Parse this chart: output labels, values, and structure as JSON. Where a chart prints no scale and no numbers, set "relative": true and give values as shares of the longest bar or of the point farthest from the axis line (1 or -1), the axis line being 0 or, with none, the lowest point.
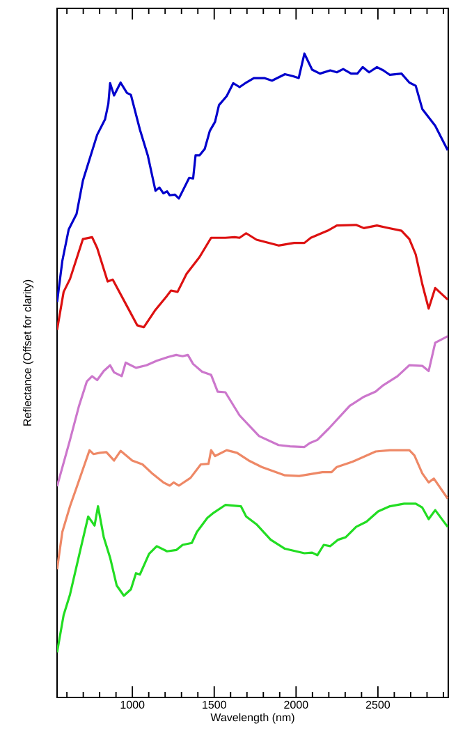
{
  "chart_data": {
    "type": "line",
    "relative": true,
    "xlabel": "Wavelength (nm)",
    "ylabel": "Reflectance (Offset for clarity)",
    "xlim": [
      540,
      2930
    ],
    "xticks": [
      {
        "value": 600,
        "label": null
      },
      {
        "value": 700,
        "label": null
      },
      {
        "value": 800,
        "label": null
      },
      {
        "value": 900,
        "label": null
      },
      1000,
      {
        "value": 1100,
        "label": null
      },
      {
        "value": 1200,
        "label": null
      },
      {
        "value": 1300,
        "label": null
      },
      {
        "value": 1400,
        "label": null
      },
      1500,
      {
        "value": 1600,
        "label": null
      },
      {
        "value": 1700,
        "label": null
      },
      {
        "value": 1800,
        "label": null
      },
      {
        "value": 1900,
        "label": null
      },
      2000,
      {
        "value": 2100,
        "label": null
      },
      {
        "value": 2200,
        "label": null
      },
      {
        "value": 2300,
        "label": null
      },
      {
        "value": 2400,
        "label": null
      },
      2500,
      {
        "value": 2600,
        "label": null
      },
      {
        "value": 2700,
        "label": null
      },
      {
        "value": 2800,
        "label": null
      },
      {
        "value": 2900,
        "label": null
      }
    ],
    "series": [
      {
        "color": "#0000cc",
        "x": [
          540,
          572,
          611,
          659,
          698,
          785,
          833,
          853,
          864,
          888,
          928,
          967,
          991,
          1046,
          1094,
          1141,
          1165,
          1189,
          1212,
          1228,
          1260,
          1284,
          1347,
          1371,
          1386,
          1410,
          1442,
          1473,
          1505,
          1529,
          1576,
          1616,
          1655,
          1695,
          1742,
          1806,
          1853,
          1932,
          1980,
          2016,
          2051,
          2098,
          2146,
          2209,
          2249,
          2288,
          2336,
          2375,
          2407,
          2446,
          2494,
          2533,
          2573,
          2644,
          2692,
          2731,
          2771,
          2850,
          2926
        ],
        "values": [
          0.614,
          0.678,
          0.727,
          0.751,
          0.803,
          0.874,
          0.898,
          0.922,
          0.954,
          0.935,
          0.955,
          0.939,
          0.936,
          0.882,
          0.842,
          0.787,
          0.792,
          0.783,
          0.786,
          0.78,
          0.781,
          0.775,
          0.807,
          0.806,
          0.842,
          0.842,
          0.852,
          0.88,
          0.894,
          0.92,
          0.934,
          0.954,
          0.948,
          0.955,
          0.962,
          0.962,
          0.958,
          0.968,
          0.965,
          0.962,
          1.0,
          0.975,
          0.969,
          0.974,
          0.971,
          0.976,
          0.969,
          0.969,
          0.979,
          0.971,
          0.979,
          0.974,
          0.967,
          0.969,
          0.955,
          0.95,
          0.914,
          0.888,
          0.85
        ]
      },
      {
        "color": "#dd1111",
        "x": [
          540,
          580,
          619,
          698,
          754,
          785,
          849,
          880,
          975,
          1030,
          1070,
          1141,
          1212,
          1236,
          1276,
          1331,
          1410,
          1481,
          1568,
          1624,
          1655,
          1695,
          1758,
          1893,
          1988,
          2051,
          2090,
          2193,
          2249,
          2367,
          2414,
          2494,
          2549,
          2644,
          2692,
          2731,
          2771,
          2810,
          2850,
          2926
        ],
        "values": [
          0.571,
          0.63,
          0.65,
          0.712,
          0.715,
          0.698,
          0.646,
          0.649,
          0.604,
          0.578,
          0.575,
          0.602,
          0.624,
          0.632,
          0.63,
          0.658,
          0.684,
          0.714,
          0.714,
          0.715,
          0.714,
          0.721,
          0.711,
          0.702,
          0.706,
          0.706,
          0.714,
          0.725,
          0.733,
          0.734,
          0.729,
          0.733,
          0.73,
          0.725,
          0.712,
          0.688,
          0.642,
          0.604,
          0.636,
          0.618
        ]
      },
      {
        "color": "#cc77cc",
        "x": [
          540,
          619,
          674,
          722,
          754,
          785,
          825,
          864,
          888,
          935,
          959,
          1022,
          1086,
          1149,
          1220,
          1268,
          1307,
          1339,
          1371,
          1426,
          1481,
          1521,
          1568,
          1655,
          1774,
          1893,
          1964,
          2051,
          2083,
          2130,
          2201,
          2328,
          2414,
          2486,
          2533,
          2620,
          2692,
          2771,
          2810,
          2850,
          2926
        ],
        "values": [
          0.328,
          0.4,
          0.453,
          0.491,
          0.499,
          0.493,
          0.507,
          0.516,
          0.505,
          0.499,
          0.52,
          0.512,
          0.516,
          0.523,
          0.529,
          0.532,
          0.53,
          0.532,
          0.518,
          0.506,
          0.501,
          0.475,
          0.474,
          0.438,
          0.406,
          0.392,
          0.39,
          0.389,
          0.395,
          0.4,
          0.418,
          0.453,
          0.467,
          0.475,
          0.485,
          0.499,
          0.516,
          0.515,
          0.507,
          0.551,
          0.561
        ]
      },
      {
        "color": "#ee8866",
        "x": [
          540,
          572,
          619,
          659,
          738,
          762,
          801,
          841,
          888,
          928,
          999,
          1062,
          1125,
          1189,
          1228,
          1252,
          1284,
          1355,
          1418,
          1465,
          1481,
          1505,
          1576,
          1639,
          1711,
          1790,
          1932,
          2019,
          2161,
          2217,
          2249,
          2344,
          2486,
          2573,
          2692,
          2723,
          2771,
          2810,
          2842,
          2926
        ],
        "values": [
          0.199,
          0.257,
          0.297,
          0.326,
          0.384,
          0.378,
          0.38,
          0.381,
          0.368,
          0.383,
          0.368,
          0.362,
          0.347,
          0.334,
          0.329,
          0.334,
          0.329,
          0.341,
          0.362,
          0.363,
          0.384,
          0.375,
          0.384,
          0.38,
          0.368,
          0.358,
          0.345,
          0.344,
          0.35,
          0.35,
          0.358,
          0.366,
          0.382,
          0.384,
          0.384,
          0.376,
          0.348,
          0.334,
          0.34,
          0.309
        ]
      },
      {
        "color": "#22dd22",
        "x": [
          540,
          580,
          619,
          682,
          730,
          769,
          790,
          825,
          864,
          904,
          948,
          991,
          1022,
          1046,
          1102,
          1149,
          1212,
          1268,
          1307,
          1363,
          1394,
          1458,
          1497,
          1568,
          1663,
          1695,
          1758,
          1845,
          1932,
          2051,
          2098,
          2130,
          2169,
          2209,
          2257,
          2304,
          2367,
          2430,
          2501,
          2573,
          2660,
          2731,
          2771,
          2810,
          2850,
          2926
        ],
        "values": [
          0.07,
          0.128,
          0.16,
          0.229,
          0.281,
          0.267,
          0.297,
          0.249,
          0.217,
          0.174,
          0.158,
          0.168,
          0.193,
          0.191,
          0.223,
          0.235,
          0.227,
          0.229,
          0.237,
          0.24,
          0.257,
          0.279,
          0.287,
          0.299,
          0.297,
          0.281,
          0.269,
          0.245,
          0.231,
          0.224,
          0.225,
          0.221,
          0.237,
          0.235,
          0.245,
          0.249,
          0.265,
          0.273,
          0.289,
          0.297,
          0.301,
          0.301,
          0.295,
          0.277,
          0.291,
          0.265
        ]
      }
    ]
  }
}
